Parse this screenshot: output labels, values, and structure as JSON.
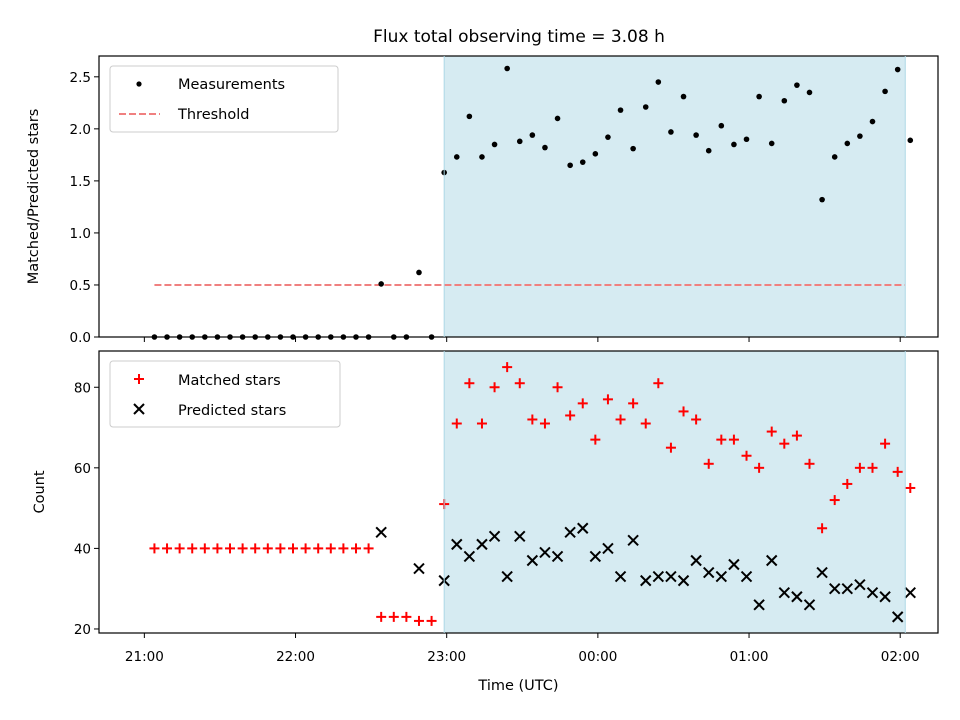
{
  "chart_data": [
    {
      "type": "scatter",
      "title": "Flux total observing time = 3.08 h",
      "xlabel": "",
      "ylabel": "Matched/Predicted stars",
      "ylim": [
        0,
        2.7
      ],
      "yticks": [
        "0.0",
        "0.5",
        "1.0",
        "1.5",
        "2.0",
        "2.5"
      ],
      "ytick_values": [
        0,
        0.5,
        1.0,
        1.5,
        2.0,
        2.5
      ],
      "xlim": [
        "20:42",
        "02:15"
      ],
      "shaded_x": [
        "22:59",
        "02:02"
      ],
      "shade_color": "#add8e6",
      "legend_position": "top-left",
      "grid": false,
      "series": [
        {
          "name": "Measurements",
          "marker": "dot",
          "color": "#000000",
          "x": [
            "21:04",
            "21:09",
            "21:14",
            "21:19",
            "21:24",
            "21:29",
            "21:34",
            "21:39",
            "21:44",
            "21:49",
            "21:54",
            "21:59",
            "22:04",
            "22:09",
            "22:14",
            "22:19",
            "22:24",
            "22:29",
            "22:34",
            "22:39",
            "22:44",
            "22:49",
            "22:54",
            "22:59",
            "23:04",
            "23:09",
            "23:14",
            "23:19",
            "23:24",
            "23:29",
            "23:34",
            "23:39",
            "23:44",
            "23:49",
            "23:54",
            "23:59",
            "00:04",
            "00:09",
            "00:14",
            "00:19",
            "00:24",
            "00:29",
            "00:34",
            "00:39",
            "00:44",
            "00:49",
            "00:54",
            "00:59",
            "01:04",
            "01:09",
            "01:14",
            "01:19",
            "01:24",
            "01:29",
            "01:34",
            "01:39",
            "01:44",
            "01:49",
            "01:54",
            "01:59",
            "02:04"
          ],
          "y": [
            0,
            0,
            0,
            0,
            0,
            0,
            0,
            0,
            0,
            0,
            0,
            0,
            0,
            0,
            0,
            0,
            0,
            0,
            0.51,
            0,
            0,
            0.62,
            0,
            1.58,
            1.73,
            2.12,
            1.73,
            1.85,
            2.58,
            1.88,
            1.94,
            1.82,
            2.1,
            1.65,
            1.68,
            1.76,
            1.92,
            2.18,
            1.81,
            2.21,
            2.45,
            1.97,
            2.31,
            1.94,
            1.79,
            2.03,
            1.85,
            1.9,
            2.31,
            1.86,
            2.27,
            2.42,
            2.35,
            1.32,
            1.73,
            1.86,
            1.93,
            2.07,
            2.36,
            2.57,
            1.89
          ]
        },
        {
          "name": "Threshold",
          "marker": "dashed-line",
          "color": "#f08080",
          "x": [
            "21:04",
            "02:02"
          ],
          "y": [
            0.5,
            0.5
          ]
        }
      ]
    },
    {
      "type": "scatter",
      "title": "",
      "xlabel": "Time (UTC)",
      "ylabel": "Count",
      "ylim": [
        19,
        89
      ],
      "yticks": [
        "20",
        "40",
        "60",
        "80"
      ],
      "ytick_values": [
        20,
        40,
        60,
        80
      ],
      "xlim": [
        "20:42",
        "02:15"
      ],
      "xticks": [
        "21:00",
        "22:00",
        "23:00",
        "00:00",
        "01:00",
        "02:00"
      ],
      "shaded_x": [
        "22:59",
        "02:02"
      ],
      "shade_color": "#add8e6",
      "legend_position": "top-left",
      "grid": false,
      "series": [
        {
          "name": "Matched stars",
          "marker": "plus",
          "color": "#ff0000",
          "x": [
            "21:04",
            "21:09",
            "21:14",
            "21:19",
            "21:24",
            "21:29",
            "21:34",
            "21:39",
            "21:44",
            "21:49",
            "21:54",
            "21:59",
            "22:04",
            "22:09",
            "22:14",
            "22:19",
            "22:24",
            "22:29",
            "22:34",
            "22:39",
            "22:44",
            "22:49",
            "22:54",
            "22:59",
            "23:04",
            "23:09",
            "23:14",
            "23:19",
            "23:24",
            "23:29",
            "23:34",
            "23:39",
            "23:44",
            "23:49",
            "23:54",
            "23:59",
            "00:04",
            "00:09",
            "00:14",
            "00:19",
            "00:24",
            "00:29",
            "00:34",
            "00:39",
            "00:44",
            "00:49",
            "00:54",
            "00:59",
            "01:04",
            "01:09",
            "01:14",
            "01:19",
            "01:24",
            "01:29",
            "01:34",
            "01:39",
            "01:44",
            "01:49",
            "01:54",
            "01:59",
            "02:04"
          ],
          "y": [
            40,
            40,
            40,
            40,
            40,
            40,
            40,
            40,
            40,
            40,
            40,
            40,
            40,
            40,
            40,
            40,
            40,
            40,
            23,
            23,
            23,
            22,
            22,
            51,
            71,
            81,
            71,
            80,
            85,
            81,
            72,
            71,
            80,
            73,
            76,
            67,
            77,
            72,
            76,
            71,
            81,
            65,
            74,
            72,
            61,
            67,
            67,
            63,
            60,
            69,
            66,
            68,
            61,
            45,
            52,
            56,
            60,
            60,
            66,
            59,
            55
          ]
        },
        {
          "name": "Predicted stars",
          "marker": "x",
          "color": "#000000",
          "x": [
            "22:34",
            "22:49",
            "22:59",
            "23:04",
            "23:09",
            "23:14",
            "23:19",
            "23:24",
            "23:29",
            "23:34",
            "23:39",
            "23:44",
            "23:49",
            "23:54",
            "23:59",
            "00:04",
            "00:09",
            "00:14",
            "00:19",
            "00:24",
            "00:29",
            "00:34",
            "00:39",
            "00:44",
            "00:49",
            "00:54",
            "00:59",
            "01:04",
            "01:09",
            "01:14",
            "01:19",
            "01:24",
            "01:29",
            "01:34",
            "01:39",
            "01:44",
            "01:49",
            "01:54",
            "01:59",
            "02:04"
          ],
          "y": [
            44,
            35,
            32,
            41,
            38,
            41,
            43,
            33,
            43,
            37,
            39,
            38,
            44,
            45,
            38,
            40,
            33,
            42,
            32,
            33,
            33,
            32,
            37,
            34,
            33,
            36,
            33,
            26,
            37,
            29,
            28,
            26,
            34,
            30,
            30,
            31,
            29,
            28,
            23,
            29
          ]
        }
      ]
    }
  ]
}
